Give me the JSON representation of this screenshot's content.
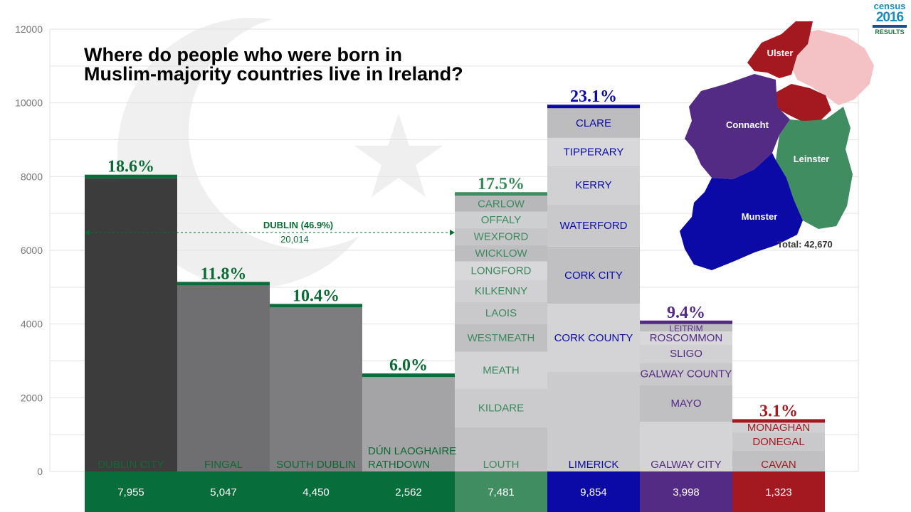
{
  "title_line1": "Where do people who were born in",
  "title_line2": "Muslim-majority countries live in Ireland?",
  "logo": {
    "line1": "census",
    "line2": "2016",
    "line3": "RESULTS"
  },
  "colors": {
    "dublin": "#076d3a",
    "leinster": "#3f8d61",
    "munster": "#0b0aa6",
    "connacht": "#542b84",
    "ulster": "#a3191f",
    "dublin_text": "#0c6b35",
    "leinster_text": "#3b8a5e",
    "munster_text": "#0b0aa6",
    "connacht_text": "#542b84",
    "ulster_text": "#a3191f"
  },
  "dublin_annotation": {
    "label": "DUBLIN (46.9%)",
    "value": "20,014"
  },
  "map": {
    "regions": [
      "Ulster",
      "Connacht",
      "Leinster",
      "Munster"
    ],
    "total_label": "Total: 42,670"
  },
  "chart_data": {
    "type": "bar",
    "title": "Where do people who were born in Muslim-majority countries live in Ireland?",
    "ylim": [
      0,
      12000
    ],
    "yticks": [
      0,
      2000,
      4000,
      6000,
      8000,
      10000,
      12000
    ],
    "grid": true,
    "xlabel": "",
    "ylabel": "",
    "bars": [
      {
        "name": "DUBLIN CITY",
        "pct": "18.6%",
        "value": 7955,
        "value_label": "7,955",
        "region": "dublin",
        "bar_fill": "#3c3c3c",
        "segments": []
      },
      {
        "name": "FINGAL",
        "pct": "11.8%",
        "value": 5047,
        "value_label": "5,047",
        "region": "dublin",
        "bar_fill": "#6f6f71",
        "segments": []
      },
      {
        "name": "SOUTH DUBLIN",
        "pct": "10.4%",
        "value": 4450,
        "value_label": "4,450",
        "region": "dublin",
        "bar_fill": "#7d7d80",
        "segments": []
      },
      {
        "name": "DÚN LAOGHAIRE\nRATHDOWN",
        "pct": "6.0%",
        "value": 2562,
        "value_label": "2,562",
        "region": "dublin",
        "bar_fill": "#a4a4a7",
        "segments": []
      },
      {
        "name": "LEINSTER",
        "pct": "17.5%",
        "value": 7481,
        "value_label": "7,481",
        "region": "leinster",
        "bar_fill": "#c8c8ca",
        "segments": [
          {
            "label": "LOUTH",
            "value": 1200
          },
          {
            "label": "KILDARE",
            "value": 1050
          },
          {
            "label": "MEATH",
            "value": 1000
          },
          {
            "label": "WESTMEATH",
            "value": 750
          },
          {
            "label": "LAOIS",
            "value": 600
          },
          {
            "label": "KILKENNY",
            "value": 600
          },
          {
            "label": "LONGFORD",
            "value": 500
          },
          {
            "label": "WICKLOW",
            "value": 450
          },
          {
            "label": "WEXFORD",
            "value": 450
          },
          {
            "label": "OFFALY",
            "value": 450
          },
          {
            "label": "CARLOW",
            "value": 431
          }
        ]
      },
      {
        "name": "MUNSTER",
        "pct": "23.1%",
        "value": 9854,
        "value_label": "9,854",
        "region": "munster",
        "bar_fill": "#b4b4b6",
        "segments": [
          {
            "label": "LIMERICK",
            "value": 2700
          },
          {
            "label": "CORK COUNTY",
            "value": 1850
          },
          {
            "label": "CORK CITY",
            "value": 1550
          },
          {
            "label": "WATERFORD",
            "value": 1150
          },
          {
            "label": "KERRY",
            "value": 1050
          },
          {
            "label": "TIPPERARY",
            "value": 750
          },
          {
            "label": "CLARE",
            "value": 804
          }
        ]
      },
      {
        "name": "CONNACHT",
        "pct": "9.4%",
        "value": 3998,
        "value_label": "3,998",
        "region": "connacht",
        "bar_fill": "#c4c4c6",
        "segments": [
          {
            "label": "GALWAY CITY",
            "value": 1350
          },
          {
            "label": "MAYO",
            "value": 1000
          },
          {
            "label": "GALWAY COUNTY",
            "value": 600
          },
          {
            "label": "SLIGO",
            "value": 500
          },
          {
            "label": "ROSCOMMON",
            "value": 350
          },
          {
            "label": "LEITRIM",
            "value": 198
          }
        ]
      },
      {
        "name": "ULSTER",
        "pct": "3.1%",
        "value": 1323,
        "value_label": "1,323",
        "region": "ulster",
        "bar_fill": "#d4d4d6",
        "segments": [
          {
            "label": "CAVAN",
            "value": 560
          },
          {
            "label": "DONEGAL",
            "value": 500
          },
          {
            "label": "MONAGHAN",
            "value": 263
          }
        ]
      }
    ]
  }
}
